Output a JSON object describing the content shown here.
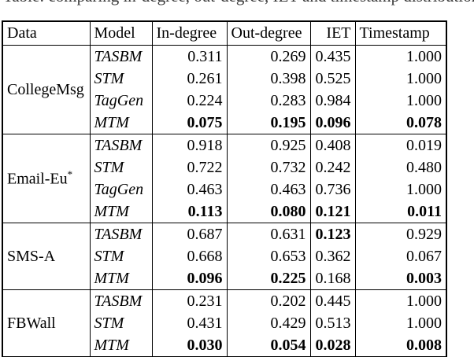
{
  "caption": {
    "clipped_text": "Table: comparing in-degree, out-degree, IET and timestamp distributions of generated graphs (lower is better)",
    "note": "only the bottom edge of this caption line is visible in the screenshot"
  },
  "table": {
    "headers": [
      "Data",
      "Model",
      "In-degree",
      "Out-degree",
      "IET",
      "Timestamp"
    ],
    "header_align": [
      "left",
      "left",
      "left",
      "left",
      "right",
      "left"
    ],
    "groups": [
      {
        "data": "CollegeMsg",
        "rows": [
          {
            "model": "TASBM",
            "values": [
              "0.311",
              "0.269",
              "0.435",
              "1.000"
            ],
            "bold": []
          },
          {
            "model": "STM",
            "values": [
              "0.261",
              "0.398",
              "0.525",
              "1.000"
            ],
            "bold": []
          },
          {
            "model": "TagGen",
            "values": [
              "0.224",
              "0.283",
              "0.984",
              "1.000"
            ],
            "bold": []
          },
          {
            "model": "MTM",
            "values": [
              "0.075",
              "0.195",
              "0.096",
              "0.078"
            ],
            "bold": [
              0,
              1,
              2,
              3
            ]
          }
        ]
      },
      {
        "data": "Email-Eu*",
        "rows": [
          {
            "model": "TASBM",
            "values": [
              "0.918",
              "0.925",
              "0.408",
              "0.019"
            ],
            "bold": []
          },
          {
            "model": "STM",
            "values": [
              "0.722",
              "0.732",
              "0.242",
              "0.480"
            ],
            "bold": []
          },
          {
            "model": "TagGen",
            "values": [
              "0.463",
              "0.463",
              "0.736",
              "1.000"
            ],
            "bold": []
          },
          {
            "model": "MTM",
            "values": [
              "0.113",
              "0.080",
              "0.121",
              "0.011"
            ],
            "bold": [
              0,
              1,
              2,
              3
            ]
          }
        ]
      },
      {
        "data": "SMS-A",
        "rows": [
          {
            "model": "TASBM",
            "values": [
              "0.687",
              "0.631",
              "0.123",
              "0.929"
            ],
            "bold": [
              2
            ]
          },
          {
            "model": "STM",
            "values": [
              "0.668",
              "0.653",
              "0.362",
              "0.067"
            ],
            "bold": []
          },
          {
            "model": "MTM",
            "values": [
              "0.096",
              "0.225",
              "0.168",
              "0.003"
            ],
            "bold": [
              0,
              1,
              3
            ]
          }
        ]
      },
      {
        "data": "FBWall",
        "rows": [
          {
            "model": "TASBM",
            "values": [
              "0.231",
              "0.202",
              "0.445",
              "1.000"
            ],
            "bold": []
          },
          {
            "model": "STM",
            "values": [
              "0.431",
              "0.429",
              "0.513",
              "1.000"
            ],
            "bold": []
          },
          {
            "model": "MTM",
            "values": [
              "0.030",
              "0.054",
              "0.028",
              "0.008"
            ],
            "bold": [
              0,
              1,
              2,
              3
            ]
          }
        ]
      }
    ]
  }
}
